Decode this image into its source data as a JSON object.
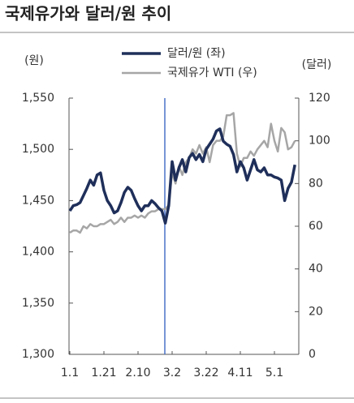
{
  "chart_data": {
    "type": "line",
    "title": "국제유가와 달러/원 추이",
    "y_label": "(원)",
    "y2_label": "(달러)",
    "categories": [
      "1.1",
      null,
      null,
      null,
      null,
      null,
      null,
      null,
      null,
      null,
      "1.21",
      null,
      null,
      null,
      null,
      null,
      null,
      null,
      null,
      null,
      "2.10",
      null,
      null,
      null,
      null,
      null,
      null,
      null,
      null,
      null,
      "3.2",
      null,
      null,
      null,
      null,
      null,
      null,
      null,
      null,
      null,
      "3.22",
      null,
      null,
      null,
      null,
      null,
      null,
      null,
      null,
      null,
      "4.11",
      null,
      null,
      null,
      null,
      null,
      null,
      null,
      null,
      null,
      "5.1",
      null,
      null,
      null,
      null,
      null,
      null
    ],
    "series": [
      {
        "name": "달러/원 (좌)",
        "color": "#1f2f5a",
        "values": [
          1440,
          1445,
          1446,
          1448,
          1455,
          1462,
          1470,
          1465,
          1475,
          1477,
          1460,
          1450,
          1445,
          1438,
          1440,
          1448,
          1458,
          1463,
          1460,
          1452,
          1445,
          1440,
          1445,
          1445,
          1450,
          1447,
          1443,
          1440,
          1428,
          1445,
          1488,
          1470,
          1482,
          1490,
          1478,
          1492,
          1496,
          1490,
          1495,
          1488,
          1500,
          1505,
          1510,
          1518,
          1520,
          1508,
          1505,
          1503,
          1495,
          1478,
          1488,
          1482,
          1470,
          1480,
          1490,
          1480,
          1478,
          1482,
          1475,
          1475,
          1473,
          1472,
          1470,
          1450,
          1462,
          1468,
          1485
        ]
      },
      {
        "name": "국제유가 WTI (우)",
        "color": "#a6a6a6",
        "axis": "y2",
        "values": [
          57,
          58,
          58,
          57,
          60,
          59,
          61,
          60,
          60,
          61,
          61,
          62,
          63,
          61,
          62,
          64,
          62,
          64,
          64,
          65,
          64,
          65,
          64,
          66,
          67,
          67,
          68,
          68,
          68,
          70,
          85,
          80,
          88,
          84,
          90,
          92,
          96,
          94,
          98,
          94,
          97,
          90,
          98,
          100,
          100,
          102,
          112,
          112,
          113,
          94,
          88,
          92,
          92,
          95,
          93,
          96,
          98,
          100,
          97,
          108,
          100,
          95,
          106,
          104,
          96,
          97,
          100
        ]
      }
    ],
    "ylim": [
      1300,
      1550
    ],
    "yticks": [
      {
        "value": 1300,
        "label": "1,300"
      },
      {
        "value": 1350,
        "label": "1,350"
      },
      {
        "value": 1400,
        "label": "1,400"
      },
      {
        "value": 1450,
        "label": "1,450"
      },
      {
        "value": 1500,
        "label": "1,500"
      },
      {
        "value": 1550,
        "label": "1,550"
      }
    ],
    "y2lim": [
      0,
      120
    ],
    "y2ticks": [
      0,
      20,
      40,
      60,
      80,
      100,
      120
    ]
  }
}
